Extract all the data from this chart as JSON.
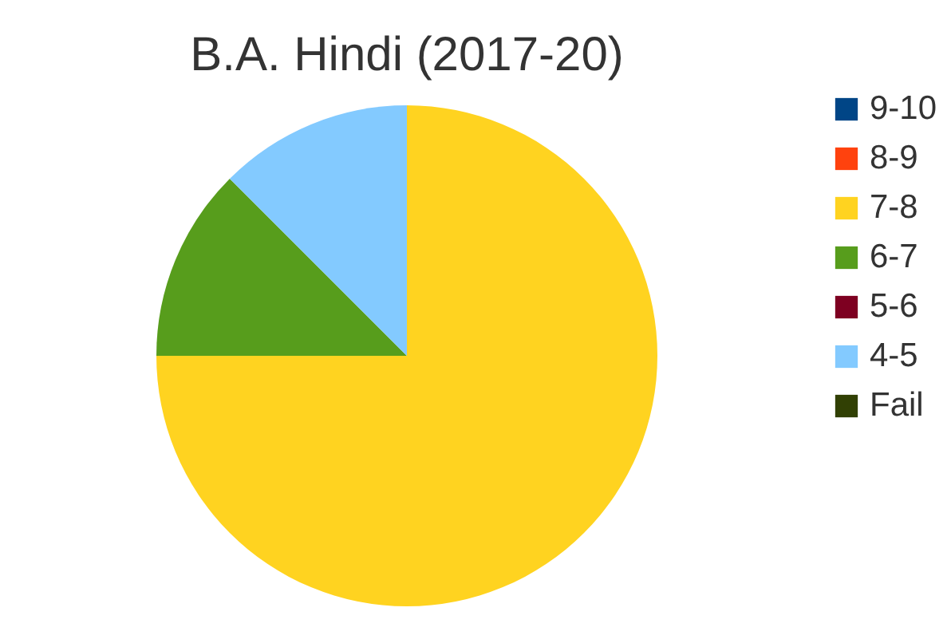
{
  "chart_data": {
    "type": "pie",
    "title": "B.A. Hindi (2017-20)",
    "categories": [
      "9-10",
      "8-9",
      "7-8",
      "6-7",
      "5-6",
      "4-5",
      "Fail"
    ],
    "values": [
      0,
      0,
      75,
      12.5,
      0,
      12.5,
      0
    ],
    "colors": [
      "#004586",
      "#ff420e",
      "#ffd320",
      "#579d1c",
      "#7e0021",
      "#83caff",
      "#314004"
    ],
    "legend": "right"
  }
}
